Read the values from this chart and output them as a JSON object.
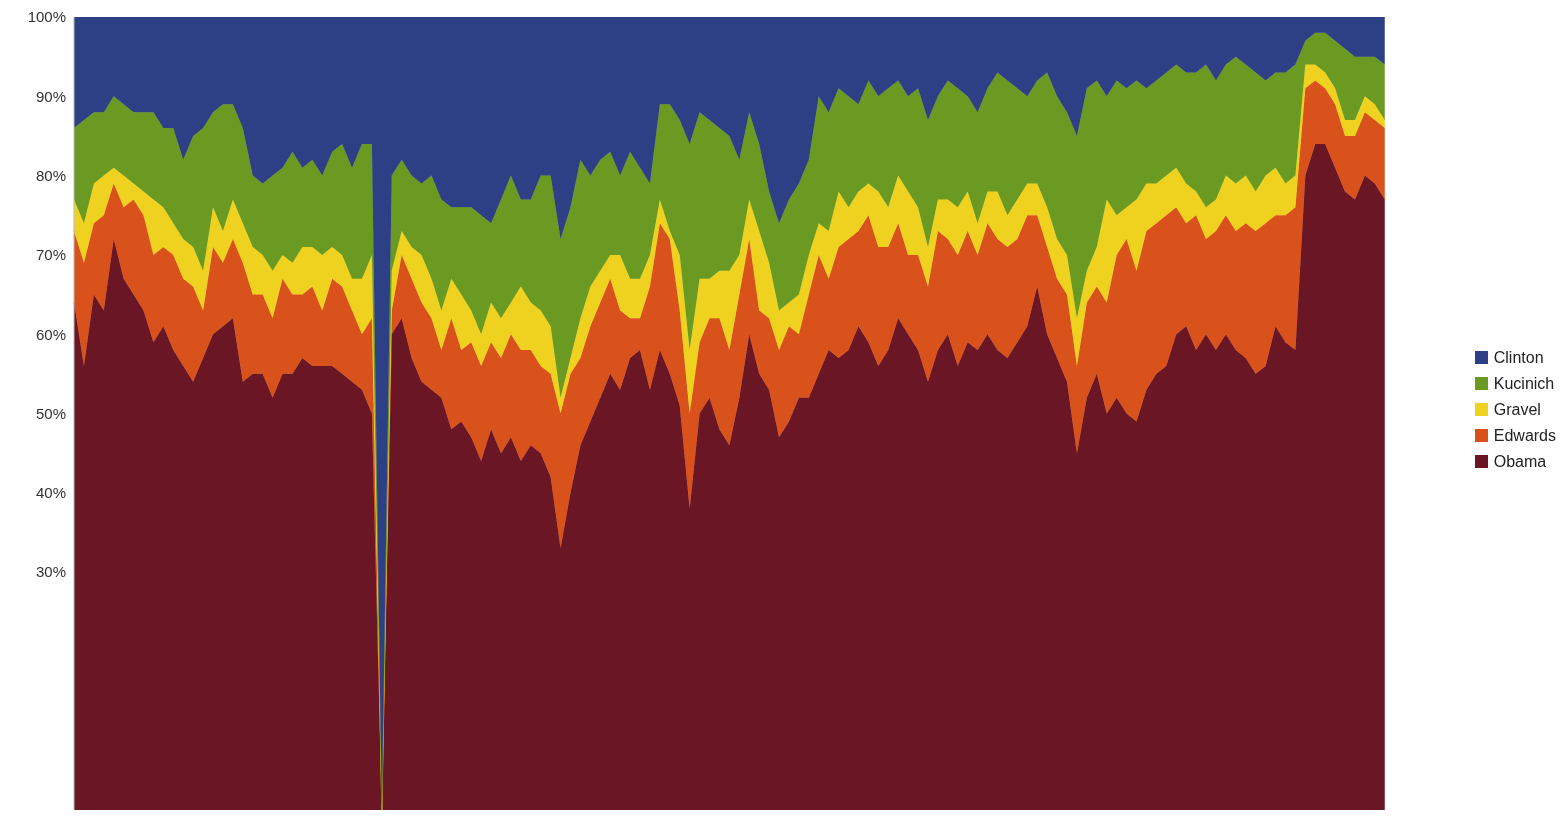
{
  "chart_data": {
    "type": "area",
    "stacked": true,
    "categories": [
      null,
      null,
      null,
      null,
      null,
      null,
      null,
      null,
      null,
      null,
      null,
      null,
      null,
      null,
      null,
      null,
      null,
      null,
      null,
      null,
      null,
      null,
      null,
      null,
      null,
      null,
      null,
      null,
      null,
      null,
      null,
      null,
      null,
      null,
      null,
      null,
      null,
      null,
      null,
      null,
      null,
      null,
      null,
      null,
      null,
      null,
      null,
      null,
      null,
      null,
      null,
      null,
      null,
      null,
      null,
      null,
      null,
      null,
      null,
      null,
      null,
      null,
      null,
      null,
      null,
      null,
      null,
      null,
      null,
      null,
      null,
      null,
      null,
      null,
      null,
      null,
      null,
      null,
      null,
      null,
      null,
      null,
      null,
      null,
      null,
      null,
      null,
      null,
      null,
      null,
      null,
      null,
      null,
      null,
      null,
      null,
      null,
      null,
      null,
      null,
      null,
      null,
      null,
      null,
      null,
      null,
      null,
      null,
      null,
      null,
      null,
      null,
      null,
      null,
      null,
      null,
      null,
      null,
      null,
      null,
      null,
      null,
      null,
      null,
      null,
      null,
      null,
      null,
      null,
      null,
      null,
      null,
      null
    ],
    "ylim": [
      0,
      100
    ],
    "yticks": [
      {
        "value": 30,
        "label": "30%"
      },
      {
        "value": 40,
        "label": "40%"
      },
      {
        "value": 50,
        "label": "50%"
      },
      {
        "value": 60,
        "label": "60%"
      },
      {
        "value": 70,
        "label": "70%"
      },
      {
        "value": 80,
        "label": "80%"
      },
      {
        "value": 90,
        "label": "90%"
      },
      {
        "value": 100,
        "label": "100%"
      }
    ],
    "grid": false,
    "legend": "right",
    "series": [
      {
        "name": "Obama",
        "color": "#6a1625",
        "values": [
          64,
          56,
          65,
          63,
          72,
          67,
          65,
          63,
          59,
          61,
          58,
          56,
          54,
          57,
          60,
          61,
          62,
          54,
          55,
          55,
          52,
          55,
          55,
          57,
          56,
          56,
          56,
          55,
          54,
          53,
          50,
          0,
          60,
          62,
          57,
          54,
          53,
          52,
          48,
          49,
          47,
          44,
          48,
          45,
          47,
          44,
          46,
          45,
          42,
          33,
          40,
          46,
          49,
          52,
          55,
          53,
          57,
          58,
          53,
          58,
          55,
          51,
          38,
          50,
          52,
          48,
          46,
          52,
          60,
          55,
          53,
          47,
          49,
          52,
          52,
          55,
          58,
          57,
          58,
          61,
          59,
          56,
          58,
          62,
          60,
          58,
          54,
          58,
          60,
          56,
          59,
          58,
          60,
          58,
          57,
          59,
          61,
          66,
          60,
          57,
          54,
          45,
          52,
          55,
          50,
          52,
          50,
          49,
          53,
          55,
          56,
          60,
          61,
          58,
          60,
          58,
          60,
          58,
          57,
          55,
          56,
          61,
          59,
          58,
          80,
          84,
          84,
          81,
          78,
          77,
          80,
          79,
          77
        ]
      },
      {
        "name": "Edwards",
        "color": "#d9521b",
        "values": [
          9,
          13,
          9,
          12,
          7,
          9,
          12,
          12,
          11,
          10,
          12,
          11,
          12,
          6,
          11,
          8,
          10,
          15,
          10,
          10,
          10,
          12,
          10,
          8,
          10,
          7,
          11,
          11,
          9,
          7,
          12,
          0,
          3,
          8,
          10,
          10,
          9,
          6,
          14,
          9,
          12,
          12,
          11,
          12,
          13,
          14,
          12,
          11,
          13,
          17,
          15,
          11,
          12,
          12,
          12,
          10,
          5,
          4,
          13,
          16,
          17,
          12,
          12,
          9,
          10,
          14,
          12,
          13,
          12,
          8,
          9,
          11,
          12,
          8,
          13,
          15,
          9,
          14,
          14,
          12,
          16,
          15,
          13,
          12,
          10,
          12,
          12,
          15,
          12,
          14,
          14,
          12,
          14,
          14,
          14,
          13,
          14,
          9,
          11,
          10,
          11,
          11,
          12,
          11,
          14,
          18,
          22,
          19,
          20,
          19,
          19,
          16,
          13,
          17,
          12,
          15,
          15,
          15,
          17,
          18,
          18,
          14,
          16,
          18,
          11,
          8,
          7,
          8,
          7,
          8,
          8,
          8,
          9
        ]
      },
      {
        "name": "Gravel",
        "color": "#efd21f",
        "values": [
          4,
          5,
          5,
          5,
          2,
          4,
          2,
          3,
          7,
          5,
          4,
          5,
          5,
          5,
          5,
          4,
          5,
          5,
          6,
          5,
          6,
          3,
          4,
          6,
          5,
          7,
          4,
          4,
          4,
          7,
          8,
          0,
          5,
          3,
          4,
          6,
          5,
          5,
          5,
          7,
          4,
          4,
          5,
          5,
          4,
          8,
          6,
          7,
          6,
          2,
          2,
          5,
          5,
          4,
          3,
          7,
          5,
          5,
          4,
          3,
          1,
          7,
          8,
          8,
          5,
          6,
          10,
          5,
          5,
          10,
          7,
          5,
          3,
          5,
          5,
          4,
          6,
          7,
          4,
          5,
          4,
          7,
          5,
          6,
          8,
          6,
          5,
          4,
          5,
          6,
          5,
          4,
          4,
          6,
          4,
          5,
          4,
          4,
          5,
          5,
          5,
          6,
          4,
          5,
          13,
          5,
          4,
          9,
          6,
          5,
          5,
          5,
          5,
          3,
          4,
          4,
          5,
          6,
          6,
          5,
          6,
          6,
          4,
          4,
          3,
          2,
          2,
          2,
          2,
          2,
          2,
          2,
          1
        ]
      },
      {
        "name": "Kucinich",
        "color": "#6a9a21",
        "values": [
          9,
          13,
          9,
          8,
          9,
          9,
          9,
          10,
          11,
          10,
          12,
          10,
          14,
          18,
          12,
          16,
          12,
          12,
          9,
          9,
          12,
          11,
          14,
          10,
          11,
          10,
          12,
          14,
          14,
          17,
          14,
          0,
          12,
          9,
          9,
          9,
          13,
          14,
          9,
          11,
          13,
          15,
          10,
          15,
          16,
          11,
          13,
          17,
          19,
          20,
          19,
          20,
          14,
          14,
          13,
          10,
          16,
          14,
          9,
          12,
          16,
          17,
          26,
          21,
          20,
          18,
          17,
          12,
          11,
          11,
          9,
          11,
          13,
          14,
          12,
          16,
          15,
          13,
          14,
          11,
          13,
          12,
          15,
          12,
          12,
          15,
          16,
          13,
          15,
          15,
          12,
          14,
          13,
          15,
          17,
          14,
          11,
          13,
          17,
          18,
          18,
          23,
          23,
          21,
          13,
          17,
          15,
          15,
          12,
          13,
          13,
          13,
          14,
          15,
          18,
          15,
          14,
          16,
          14,
          15,
          12,
          12,
          14,
          14,
          3,
          4,
          5,
          6,
          9,
          8,
          5,
          6,
          7
        ]
      },
      {
        "name": "Clinton",
        "color": "#2d3f85",
        "values": [
          14,
          13,
          12,
          12,
          10,
          11,
          12,
          12,
          12,
          14,
          14,
          18,
          15,
          14,
          12,
          11,
          11,
          14,
          20,
          21,
          20,
          19,
          17,
          19,
          18,
          20,
          17,
          16,
          19,
          16,
          16,
          100,
          20,
          18,
          20,
          21,
          20,
          23,
          24,
          24,
          24,
          25,
          26,
          23,
          20,
          23,
          23,
          20,
          20,
          28,
          24,
          18,
          20,
          18,
          17,
          20,
          17,
          19,
          21,
          11,
          11,
          13,
          16,
          12,
          13,
          14,
          15,
          18,
          12,
          16,
          22,
          26,
          23,
          21,
          18,
          10,
          12,
          9,
          10,
          11,
          8,
          10,
          9,
          8,
          10,
          9,
          13,
          10,
          8,
          9,
          10,
          12,
          9,
          7,
          8,
          9,
          10,
          8,
          7,
          10,
          12,
          15,
          9,
          8,
          10,
          8,
          9,
          8,
          9,
          8,
          7,
          6,
          7,
          7,
          6,
          8,
          6,
          5,
          6,
          7,
          8,
          7,
          7,
          6,
          3,
          2,
          2,
          3,
          4,
          5,
          5,
          5,
          6
        ]
      }
    ]
  }
}
